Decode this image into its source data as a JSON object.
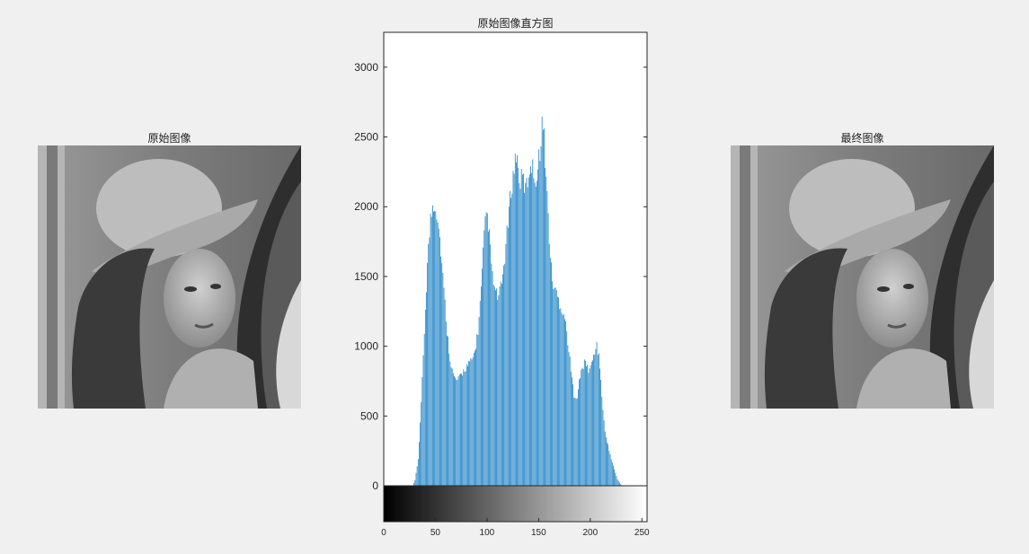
{
  "figure": {
    "left_title": "原始图像",
    "middle_title": "原始图像直方图",
    "right_title": "最终图像"
  },
  "chart_data": {
    "type": "bar",
    "title": "原始图像直方图",
    "xlabel": "",
    "ylabel": "",
    "xlim": [
      0,
      255
    ],
    "ylim": [
      0,
      3250
    ],
    "colorbar_ylim": [
      -260,
      0
    ],
    "yticks": [
      0,
      500,
      1000,
      1500,
      2000,
      2500,
      3000
    ],
    "xticks": [
      0,
      50,
      100,
      150,
      200,
      250
    ],
    "bar_color": "#0072BD",
    "grid": false,
    "colorbar": "grayscale 0-255 below x-axis",
    "envelope": [
      [
        0,
        0
      ],
      [
        28,
        0
      ],
      [
        30,
        40
      ],
      [
        33,
        200
      ],
      [
        36,
        600
      ],
      [
        39,
        1150
      ],
      [
        42,
        1650
      ],
      [
        45,
        1980
      ],
      [
        47,
        2080
      ],
      [
        49,
        2100
      ],
      [
        52,
        2000
      ],
      [
        55,
        1750
      ],
      [
        58,
        1450
      ],
      [
        61,
        1150
      ],
      [
        64,
        950
      ],
      [
        67,
        820
      ],
      [
        70,
        780
      ],
      [
        73,
        800
      ],
      [
        76,
        840
      ],
      [
        79,
        880
      ],
      [
        82,
        900
      ],
      [
        85,
        930
      ],
      [
        88,
        1000
      ],
      [
        91,
        1150
      ],
      [
        94,
        1450
      ],
      [
        97,
        1850
      ],
      [
        99,
        2030
      ],
      [
        101,
        1950
      ],
      [
        103,
        1750
      ],
      [
        105,
        1550
      ],
      [
        108,
        1430
      ],
      [
        111,
        1400
      ],
      [
        114,
        1500
      ],
      [
        117,
        1700
      ],
      [
        120,
        1950
      ],
      [
        123,
        2200
      ],
      [
        126,
        2350
      ],
      [
        128,
        2480
      ],
      [
        130,
        2350
      ],
      [
        132,
        2250
      ],
      [
        134,
        2300
      ],
      [
        137,
        2200
      ],
      [
        140,
        2300
      ],
      [
        142,
        2420
      ],
      [
        145,
        2320
      ],
      [
        148,
        2280
      ],
      [
        151,
        2500
      ],
      [
        153,
        2700
      ],
      [
        155,
        2580
      ],
      [
        157,
        2300
      ],
      [
        159,
        2000
      ],
      [
        161,
        1700
      ],
      [
        163,
        1520
      ],
      [
        166,
        1450
      ],
      [
        169,
        1380
      ],
      [
        172,
        1320
      ],
      [
        175,
        1250
      ],
      [
        178,
        1080
      ],
      [
        181,
        850
      ],
      [
        184,
        680
      ],
      [
        187,
        660
      ],
      [
        189,
        770
      ],
      [
        192,
        880
      ],
      [
        195,
        920
      ],
      [
        198,
        860
      ],
      [
        201,
        900
      ],
      [
        204,
        1000
      ],
      [
        206,
        1050
      ],
      [
        208,
        950
      ],
      [
        210,
        800
      ],
      [
        212,
        550
      ],
      [
        214,
        400
      ],
      [
        217,
        300
      ],
      [
        220,
        200
      ],
      [
        223,
        120
      ],
      [
        226,
        50
      ],
      [
        229,
        10
      ],
      [
        231,
        0
      ],
      [
        255,
        0
      ]
    ]
  }
}
